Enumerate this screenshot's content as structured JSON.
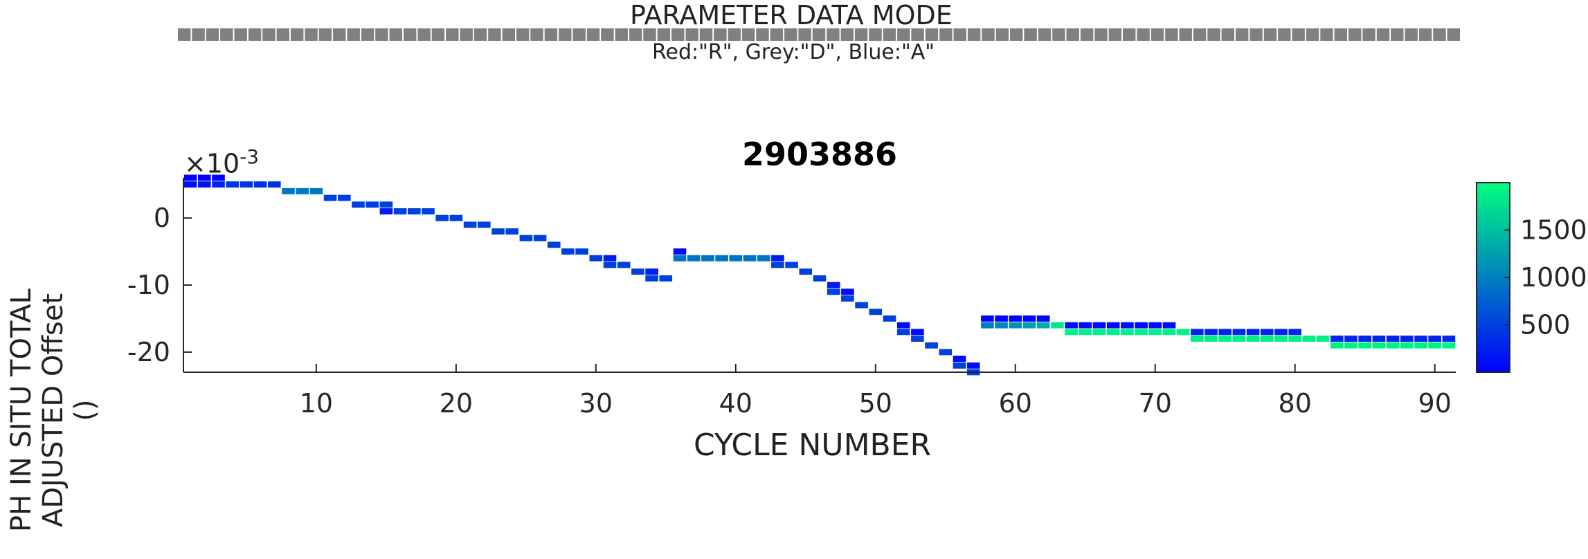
{
  "mode_strip": {
    "title": "PARAMETER DATA MODE",
    "subtitle": "Red:\"R\", Grey:\"D\", Blue:\"A\"",
    "mode_values": [
      "D",
      "D",
      "D",
      "D",
      "D",
      "D",
      "D",
      "D",
      "D",
      "D",
      "D",
      "D",
      "D",
      "D",
      "D",
      "D",
      "D",
      "D",
      "D",
      "D",
      "D",
      "D",
      "D",
      "D",
      "D",
      "D",
      "D",
      "D",
      "D",
      "D",
      "D",
      "D",
      "D",
      "D",
      "D",
      "D",
      "D",
      "D",
      "D",
      "D",
      "D",
      "D",
      "D",
      "D",
      "D",
      "D",
      "D",
      "D",
      "D",
      "D",
      "D",
      "D",
      "D",
      "D",
      "D",
      "D",
      "D",
      "D",
      "D",
      "D",
      "D",
      "D",
      "D",
      "D",
      "D",
      "D",
      "D",
      "D",
      "D",
      "D",
      "D",
      "D",
      "D",
      "D",
      "D",
      "D",
      "D",
      "D",
      "D",
      "D",
      "D",
      "D",
      "D",
      "D",
      "D",
      "D",
      "D",
      "D",
      "D",
      "D",
      "D"
    ],
    "colors": {
      "R": "#e03030",
      "D": "#808080",
      "A": "#2a4bd7"
    }
  },
  "chart_data": {
    "type": "scatter",
    "title": "2903886",
    "xlabel": "CYCLE NUMBER",
    "ylabel": [
      "PH IN SITU TOTAL",
      "ADJUSTED Offset",
      "()"
    ],
    "y_exponent_label": "×10",
    "y_exponent_power": "-3",
    "xlim": [
      0.5,
      91.5
    ],
    "ylim": [
      -23,
      6
    ],
    "x_ticks": [
      10,
      20,
      30,
      40,
      50,
      60,
      70,
      80,
      90
    ],
    "y_ticks": [
      -20,
      -10,
      0
    ],
    "colorbar": {
      "ticks": [
        500,
        1000,
        1500
      ],
      "range": [
        0,
        2000
      ],
      "colormap": "winter",
      "colors": [
        "#0000ff",
        "#00ff80"
      ]
    },
    "points": [
      [
        1,
        6,
        5
      ],
      [
        1,
        5,
        100
      ],
      [
        2,
        6,
        10
      ],
      [
        2,
        5,
        150
      ],
      [
        3,
        6,
        20
      ],
      [
        3,
        5,
        250
      ],
      [
        4,
        5,
        400
      ],
      [
        5,
        5,
        400
      ],
      [
        6,
        5,
        400
      ],
      [
        7,
        5,
        400
      ],
      [
        8,
        4,
        950
      ],
      [
        9,
        4,
        950
      ],
      [
        10,
        4,
        950
      ],
      [
        11,
        3,
        500
      ],
      [
        12,
        3,
        500
      ],
      [
        13,
        2,
        500
      ],
      [
        14,
        2,
        500
      ],
      [
        15,
        2,
        500
      ],
      [
        15,
        1,
        200
      ],
      [
        16,
        1,
        500
      ],
      [
        17,
        1,
        500
      ],
      [
        18,
        1,
        500
      ],
      [
        19,
        0,
        500
      ],
      [
        20,
        0,
        500
      ],
      [
        21,
        -1,
        500
      ],
      [
        22,
        -1,
        500
      ],
      [
        23,
        -2,
        500
      ],
      [
        24,
        -2,
        500
      ],
      [
        25,
        -3,
        500
      ],
      [
        26,
        -3,
        500
      ],
      [
        27,
        -4,
        500
      ],
      [
        28,
        -5,
        500
      ],
      [
        29,
        -5,
        500
      ],
      [
        30,
        -6,
        500
      ],
      [
        31,
        -6,
        200
      ],
      [
        31,
        -7,
        500
      ],
      [
        32,
        -7,
        500
      ],
      [
        33,
        -8,
        500
      ],
      [
        34,
        -8,
        200
      ],
      [
        34,
        -9,
        500
      ],
      [
        35,
        -9,
        500
      ],
      [
        36,
        -5,
        100
      ],
      [
        36,
        -6,
        900
      ],
      [
        37,
        -6,
        900
      ],
      [
        38,
        -6,
        900
      ],
      [
        39,
        -6,
        900
      ],
      [
        40,
        -6,
        900
      ],
      [
        41,
        -6,
        900
      ],
      [
        42,
        -6,
        900
      ],
      [
        43,
        -6,
        200
      ],
      [
        43,
        -7,
        500
      ],
      [
        44,
        -7,
        500
      ],
      [
        45,
        -8,
        500
      ],
      [
        46,
        -9,
        500
      ],
      [
        47,
        -10,
        200
      ],
      [
        47,
        -11,
        500
      ],
      [
        48,
        -11,
        100
      ],
      [
        48,
        -12,
        500
      ],
      [
        49,
        -13,
        500
      ],
      [
        50,
        -14,
        500
      ],
      [
        51,
        -15,
        500
      ],
      [
        52,
        -16,
        100
      ],
      [
        52,
        -17,
        500
      ],
      [
        53,
        -17,
        100
      ],
      [
        53,
        -18,
        500
      ],
      [
        54,
        -19,
        500
      ],
      [
        55,
        -20,
        500
      ],
      [
        56,
        -21,
        100
      ],
      [
        56,
        -22,
        500
      ],
      [
        57,
        -22,
        100
      ],
      [
        57,
        -23,
        500
      ],
      [
        58,
        -15,
        50
      ],
      [
        58,
        -16,
        950
      ],
      [
        59,
        -15,
        50
      ],
      [
        59,
        -16,
        1050
      ],
      [
        60,
        -15,
        50
      ],
      [
        60,
        -16,
        1150
      ],
      [
        61,
        -15,
        50
      ],
      [
        61,
        -16,
        1250
      ],
      [
        62,
        -15,
        50
      ],
      [
        62,
        -16,
        1350
      ],
      [
        63,
        -16,
        1800
      ],
      [
        64,
        -16,
        100
      ],
      [
        64,
        -17,
        1900
      ],
      [
        65,
        -16,
        100
      ],
      [
        65,
        -17,
        1900
      ],
      [
        66,
        -16,
        100
      ],
      [
        66,
        -17,
        1900
      ],
      [
        67,
        -16,
        100
      ],
      [
        67,
        -17,
        1900
      ],
      [
        68,
        -16,
        100
      ],
      [
        68,
        -17,
        1900
      ],
      [
        69,
        -16,
        100
      ],
      [
        69,
        -17,
        1900
      ],
      [
        70,
        -16,
        100
      ],
      [
        70,
        -17,
        1900
      ],
      [
        71,
        -16,
        100
      ],
      [
        71,
        -17,
        1900
      ],
      [
        72,
        -17,
        1900
      ],
      [
        73,
        -17,
        300
      ],
      [
        73,
        -18,
        1900
      ],
      [
        74,
        -17,
        300
      ],
      [
        74,
        -18,
        1900
      ],
      [
        75,
        -17,
        300
      ],
      [
        75,
        -18,
        1900
      ],
      [
        76,
        -17,
        300
      ],
      [
        76,
        -18,
        1900
      ],
      [
        77,
        -17,
        300
      ],
      [
        77,
        -18,
        1900
      ],
      [
        78,
        -17,
        300
      ],
      [
        78,
        -18,
        1900
      ],
      [
        79,
        -17,
        300
      ],
      [
        79,
        -18,
        1900
      ],
      [
        80,
        -17,
        300
      ],
      [
        80,
        -18,
        1900
      ],
      [
        81,
        -18,
        1900
      ],
      [
        82,
        -18,
        1900
      ],
      [
        83,
        -18,
        300
      ],
      [
        83,
        -19,
        1900
      ],
      [
        84,
        -18,
        300
      ],
      [
        84,
        -19,
        1900
      ],
      [
        85,
        -18,
        300
      ],
      [
        85,
        -19,
        1900
      ],
      [
        86,
        -18,
        300
      ],
      [
        86,
        -19,
        1900
      ],
      [
        87,
        -18,
        300
      ],
      [
        87,
        -19,
        1900
      ],
      [
        88,
        -18,
        300
      ],
      [
        88,
        -19,
        1900
      ],
      [
        89,
        -18,
        300
      ],
      [
        89,
        -19,
        1900
      ],
      [
        90,
        -18,
        300
      ],
      [
        90,
        -19,
        1900
      ],
      [
        91,
        -18,
        300
      ],
      [
        91,
        -19,
        1900
      ]
    ]
  }
}
